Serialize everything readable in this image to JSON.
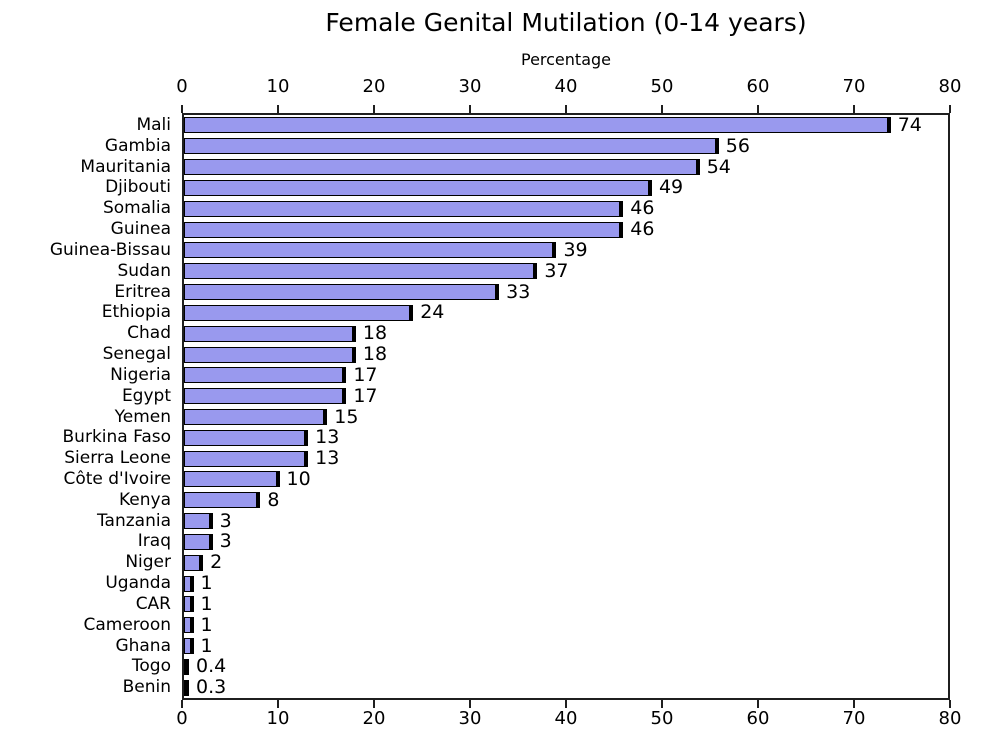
{
  "chart_data": {
    "type": "bar",
    "orientation": "horizontal",
    "title": "Female Genital Mutilation (0-14 years)",
    "xlabel": "Percentage",
    "ylabel": "",
    "categories": [
      "Mali",
      "Gambia",
      "Mauritania",
      "Djibouti",
      "Somalia",
      "Guinea",
      "Guinea-Bissau",
      "Sudan",
      "Eritrea",
      "Ethiopia",
      "Chad",
      "Senegal",
      "Nigeria",
      "Egypt",
      "Yemen",
      "Burkina Faso",
      "Sierra Leone",
      "Côte d'Ivoire",
      "Kenya",
      "Tanzania",
      "Iraq",
      "Niger",
      "Uganda",
      "CAR",
      "Cameroon",
      "Ghana",
      "Togo",
      "Benin"
    ],
    "values": [
      74,
      56,
      54,
      49,
      46,
      46,
      39,
      37,
      33,
      24,
      18,
      18,
      17,
      17,
      15,
      13,
      13,
      10,
      8,
      3,
      3,
      2,
      1,
      1,
      1,
      1,
      0.4,
      0.3
    ],
    "value_labels": [
      "74",
      "56",
      "54",
      "49",
      "46",
      "46",
      "39",
      "37",
      "33",
      "24",
      "18",
      "18",
      "17",
      "17",
      "15",
      "13",
      "13",
      "10",
      "8",
      "3",
      "3",
      "2",
      "1",
      "1",
      "1",
      "1",
      "0.4",
      "0.3"
    ],
    "xlim": [
      0,
      80
    ],
    "xticks": [
      0,
      10,
      20,
      30,
      40,
      50,
      60,
      70,
      80
    ],
    "grid": false,
    "legend": "none",
    "axes": "ticks on top and bottom, values annotated at bar ends",
    "bar_color": "#9999ee",
    "bar_edge_color": "#000000",
    "axis_color": "#1f1f1f",
    "text_color": "#000000"
  }
}
